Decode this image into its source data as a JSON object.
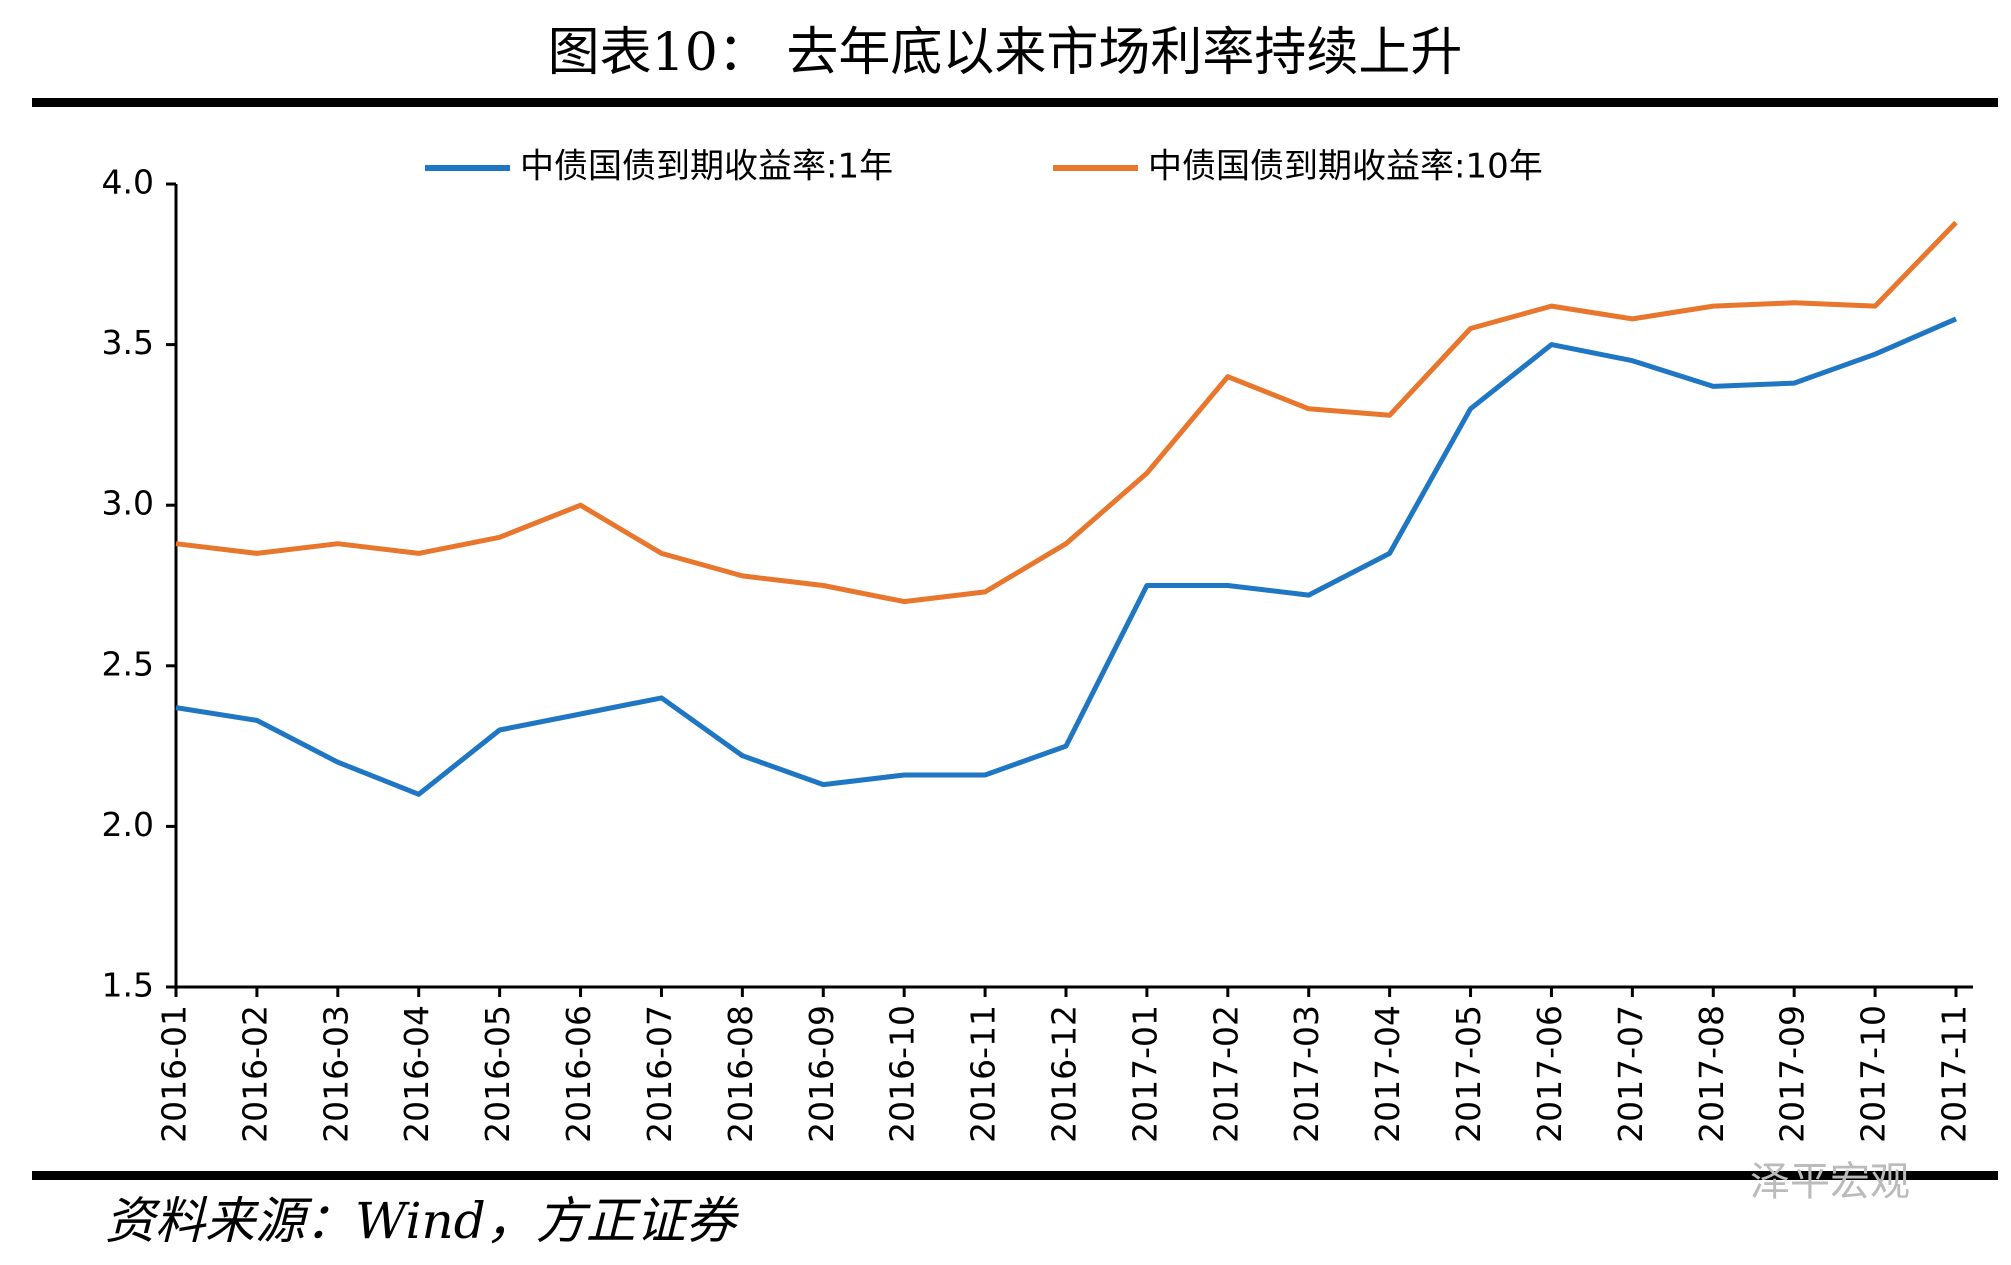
{
  "chart_data": {
    "type": "line",
    "title": "图表10： 去年底以来市场利率持续上升",
    "source": "资料来源：Wind，方正证券",
    "watermark": "泽平宏观",
    "x": [
      "2016-01",
      "2016-02",
      "2016-03",
      "2016-04",
      "2016-05",
      "2016-06",
      "2016-07",
      "2016-08",
      "2016-09",
      "2016-10",
      "2016-11",
      "2016-12",
      "2017-01",
      "2017-02",
      "2017-03",
      "2017-04",
      "2017-05",
      "2017-06",
      "2017-07",
      "2017-08",
      "2017-09",
      "2017-10",
      "2017-11"
    ],
    "series": [
      {
        "name": "中债国债到期收益率:1年",
        "color": "#1f77c4",
        "values": [
          2.37,
          2.33,
          2.2,
          2.1,
          2.3,
          2.35,
          2.4,
          2.22,
          2.13,
          2.16,
          2.16,
          2.25,
          2.75,
          2.75,
          2.72,
          2.85,
          3.3,
          3.5,
          3.45,
          3.37,
          3.38,
          3.47,
          3.58
        ]
      },
      {
        "name": "中债国债到期收益率:10年",
        "color": "#e8762c",
        "values": [
          2.88,
          2.85,
          2.88,
          2.85,
          2.9,
          3.0,
          2.85,
          2.78,
          2.75,
          2.7,
          2.73,
          2.88,
          3.1,
          3.4,
          3.3,
          3.28,
          3.55,
          3.62,
          3.58,
          3.62,
          3.63,
          3.62,
          3.88
        ]
      }
    ],
    "ylim": [
      1.5,
      4.0
    ],
    "yticks": [
      {
        "value": 1.5,
        "label": "1.5"
      },
      {
        "value": 2,
        "label": "2.0"
      },
      {
        "value": 2.5,
        "label": "2.5"
      },
      {
        "value": 3,
        "label": "3.0"
      },
      {
        "value": 3.5,
        "label": "3.5"
      },
      {
        "value": 4,
        "label": "4.0"
      }
    ],
    "legend": "top"
  }
}
